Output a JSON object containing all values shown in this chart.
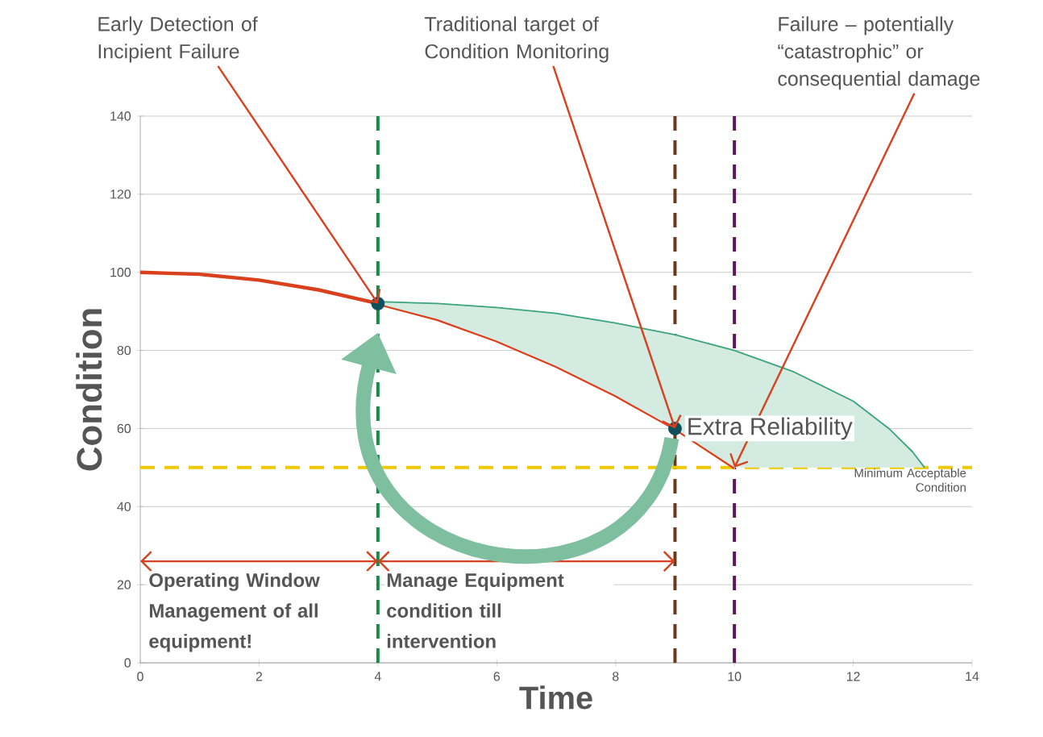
{
  "chart_data": {
    "type": "line",
    "xlabel": "Time",
    "ylabel": "Condition",
    "xlim": [
      0,
      14
    ],
    "ylim": [
      0,
      140
    ],
    "xticks": [
      0,
      2,
      4,
      6,
      8,
      10,
      12,
      14
    ],
    "yticks": [
      0,
      20,
      40,
      60,
      80,
      100,
      120,
      140
    ],
    "grid": "y",
    "series": [
      {
        "color": "#d9401e",
        "x": [
          0,
          1,
          2,
          3,
          4,
          5,
          6,
          7,
          8,
          9,
          10
        ],
        "values": [
          100,
          99.5,
          98,
          95.5,
          92,
          88,
          82.5,
          76,
          68.5,
          60,
          50
        ]
      },
      {
        "type": "scatter",
        "color": "#0d4f5c",
        "marker": "circle",
        "x": [
          4,
          9
        ],
        "values": [
          92,
          60
        ]
      },
      {
        "type": "line",
        "name": "Extra Reliability",
        "color": "#3aa57a",
        "x": [
          4,
          5,
          6,
          7,
          8,
          9,
          10,
          11,
          12,
          12.6,
          13,
          13.2
        ],
        "values": [
          92.5,
          92,
          91,
          89.5,
          87,
          84,
          80,
          74.5,
          67,
          60,
          54,
          50
        ],
        "lower": [
          92,
          88,
          82.5,
          76,
          68.5,
          60,
          50,
          50,
          50,
          50,
          50,
          50
        ],
        "upper": [
          92.5,
          92,
          91,
          89.5,
          87,
          84,
          80,
          74.5,
          67,
          60,
          54,
          50
        ]
      }
    ],
    "ref_lines": [
      {
        "axis": "x",
        "value": 4,
        "color": "#1a8a4a",
        "line_style": "dashed"
      },
      {
        "axis": "x",
        "value": 9,
        "color": "#6b3a1e",
        "line_style": "dashed"
      },
      {
        "axis": "x",
        "value": 10,
        "color": "#5a1a5a",
        "line_style": "dashed"
      },
      {
        "axis": "y",
        "value": 50,
        "color": "#f0c800",
        "line_style": "dashed",
        "label": "Minimum Acceptable Condition"
      }
    ],
    "annotations": [
      {
        "text": "Early Detection of Incipient Failure",
        "x": 4,
        "y": 92
      },
      {
        "text": "Traditional target of Condition Monitoring",
        "x": 9,
        "y": 60
      },
      {
        "text": "Failure – potentially “catastrophic” or consequential damage",
        "x": 10,
        "y": 50
      },
      {
        "text": "Operating Window Management of all equipment!",
        "x": 4,
        "y": 26
      },
      {
        "text": "Manage Equipment condition till intervention",
        "x": 9,
        "y": 26
      }
    ]
  }
}
